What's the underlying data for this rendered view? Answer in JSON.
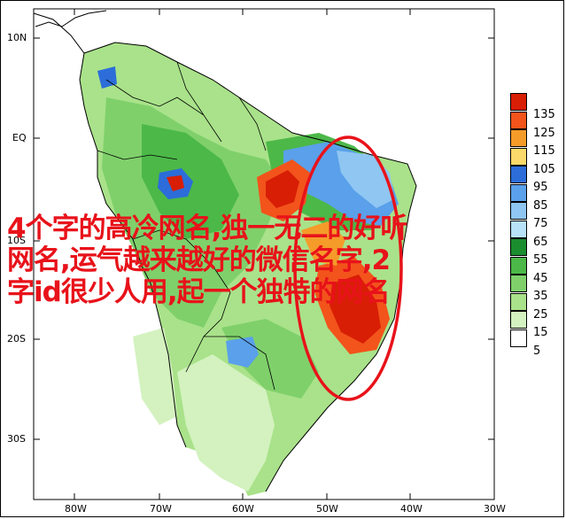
{
  "map": {
    "lat_labels": [
      "10N",
      "EQ",
      "10S",
      "20S",
      "30S"
    ],
    "lon_labels": [
      "80W",
      "70W",
      "60W",
      "50W",
      "40W",
      "30W"
    ]
  },
  "legend": {
    "values": [
      "135",
      "125",
      "115",
      "105",
      "95",
      "85",
      "75",
      "65",
      "55",
      "45",
      "35",
      "25",
      "15",
      "5"
    ],
    "colors": [
      "#d81e05",
      "#f2541b",
      "#f59b2a",
      "#fbd96a",
      "#2c6dd9",
      "#5aa0ea",
      "#8fc6f2",
      "#b7e2f7",
      "#1a8d2f",
      "#4cb848",
      "#7fd06b",
      "#a9e28a",
      "#d3f2bf",
      "#ffffff"
    ]
  },
  "overlay_text": {
    "line1": "4个字的高冷网名,独一无二的好听",
    "line2": "网名,运气越来越好的微信名字,2",
    "line3": "字id很少人用,起一个独特的网名"
  },
  "highlight": {
    "color": "#e8121a"
  }
}
